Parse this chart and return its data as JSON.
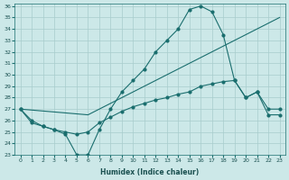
{
  "xlabel": "Humidex (Indice chaleur)",
  "bg_color": "#cce8e8",
  "line_color": "#1a6e6e",
  "grid_color": "#a8cccc",
  "xlim": [
    -0.5,
    23.5
  ],
  "ylim": [
    23,
    36.2
  ],
  "yticks": [
    23,
    24,
    25,
    26,
    27,
    28,
    29,
    30,
    31,
    32,
    33,
    34,
    35,
    36
  ],
  "xticks": [
    0,
    1,
    2,
    3,
    4,
    5,
    6,
    7,
    8,
    9,
    10,
    11,
    12,
    13,
    14,
    15,
    16,
    17,
    18,
    19,
    20,
    21,
    22,
    23
  ],
  "line1_x": [
    0,
    1,
    2,
    3,
    4,
    5,
    6,
    7,
    8,
    9,
    10,
    11,
    12,
    13,
    14,
    15,
    16,
    17,
    18,
    19,
    20,
    21,
    22,
    23
  ],
  "line1_y": [
    27,
    26,
    25.5,
    25.2,
    24.8,
    23.0,
    23.0,
    25.2,
    27.0,
    28.5,
    29.5,
    30.5,
    32.0,
    33.0,
    34.0,
    35.7,
    36.0,
    35.5,
    33.5,
    29.5,
    28.0,
    28.5,
    26.5,
    26.5
  ],
  "line2_x": [
    0,
    6,
    23
  ],
  "line2_y": [
    27,
    26.5,
    35.0
  ],
  "line3_x": [
    0,
    1,
    2,
    3,
    4,
    5,
    6,
    7,
    8,
    9,
    10,
    11,
    12,
    13,
    14,
    15,
    16,
    17,
    18,
    19,
    20,
    21,
    22,
    23
  ],
  "line3_y": [
    27,
    25.8,
    25.5,
    25.2,
    25.0,
    24.8,
    25.0,
    25.8,
    26.3,
    26.8,
    27.2,
    27.5,
    27.8,
    28.0,
    28.3,
    28.5,
    29.0,
    29.2,
    29.4,
    29.5,
    28.0,
    28.5,
    27.0,
    27.0
  ]
}
